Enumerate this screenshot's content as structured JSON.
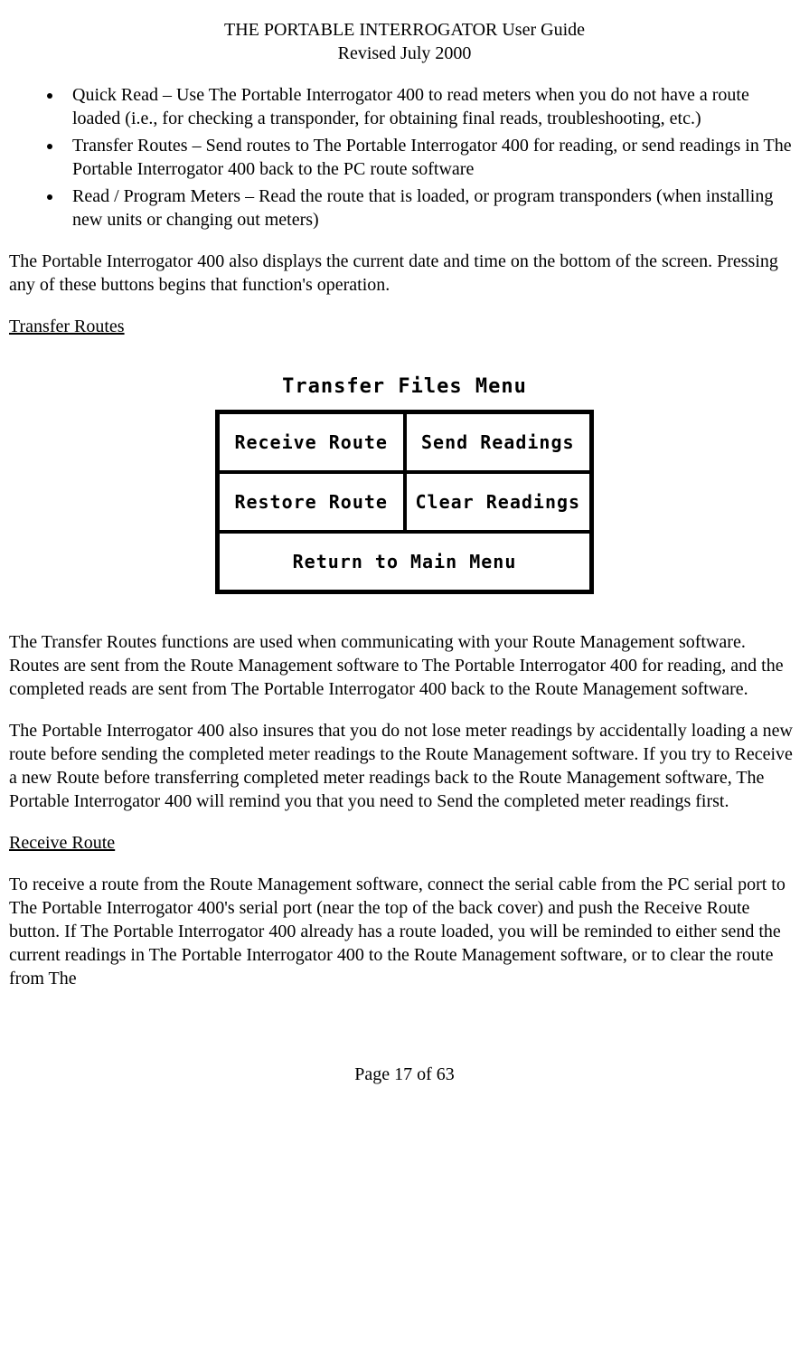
{
  "header": {
    "title": "THE PORTABLE INTERROGATOR User Guide",
    "revised": "Revised July 2000"
  },
  "bullets": [
    "Quick Read – Use The Portable Interrogator 400 to read meters when you do not have a route loaded (i.e., for checking a transponder, for obtaining final reads, troubleshooting, etc.)",
    "Transfer Routes – Send routes to The Portable Interrogator 400 for reading, or send readings in The Portable Interrogator 400 back to the PC route software",
    "Read / Program Meters – Read the route that is loaded, or program transponders (when installing new units or changing out meters)"
  ],
  "para1": "The Portable Interrogator 400 also displays the current date and time on the bottom of the screen.  Pressing any of these buttons begins that function's operation.",
  "section1_title": "Transfer Routes",
  "menu": {
    "title": "Transfer Files Menu",
    "cells": {
      "tl": "Receive Route",
      "tr": "Send Readings",
      "bl": "Restore Route",
      "br": "Clear Readings",
      "bottom": "Return to Main Menu"
    }
  },
  "para2": "The Transfer Routes functions are used when communicating with your Route Management software.  Routes are sent from the Route Management software to The Portable Interrogator 400 for reading, and the completed reads are sent from The Portable Interrogator 400 back to the Route Management software.",
  "para3": "The Portable Interrogator 400 also insures that you do not lose meter readings by accidentally loading a new route before sending the completed meter readings to the Route Management software.  If you try to Receive a new Route before transferring completed meter readings back to the Route Management software, The Portable Interrogator 400 will remind you that you need to Send the completed meter readings first.",
  "section2_title": "Receive Route",
  "para4": "To receive a route from the Route Management software, connect the serial cable from the PC serial port to The Portable Interrogator 400's serial port (near the top of the back cover) and push the Receive Route button.  If The Portable Interrogator 400 already has a route loaded, you will be reminded to either send the current readings in The Portable Interrogator 400 to the Route Management software, or to clear the route from The",
  "footer": "Page 17 of 63"
}
